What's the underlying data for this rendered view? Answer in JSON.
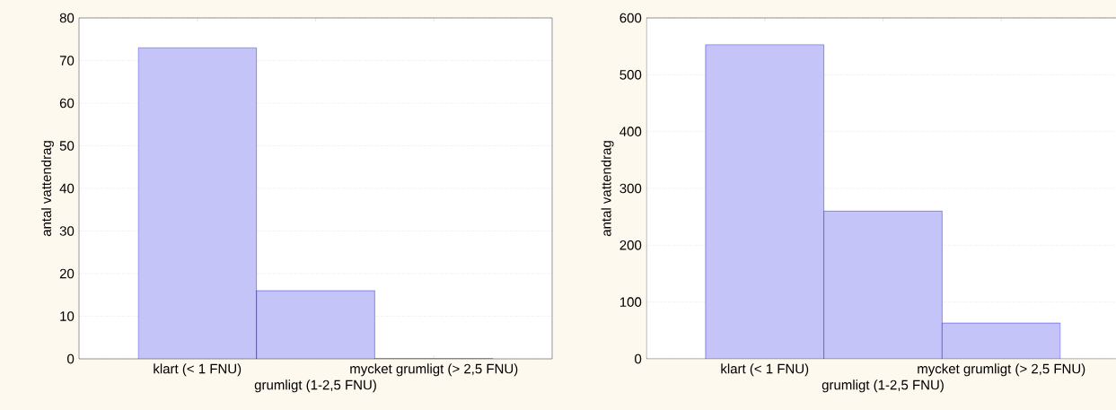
{
  "chart_data": [
    {
      "type": "bar",
      "categories": [
        "klart (< 1 FNU)",
        "grumligt (1-2,5 FNU)",
        "mycket grumligt (> 2,5 FNU)"
      ],
      "values": [
        73,
        16,
        0
      ],
      "color": "#c4c4f8",
      "ylabel": "antal vattendrag",
      "ylim": [
        0,
        80
      ],
      "yticks": [
        0,
        10,
        20,
        30,
        40,
        50,
        60,
        70,
        80
      ],
      "grid": "y"
    },
    {
      "type": "bar",
      "categories": [
        "klart (< 1 FNU)",
        "grumligt (1-2,5 FNU)",
        "mycket grumligt (> 2,5 FNU)"
      ],
      "values": [
        553,
        260,
        63
      ],
      "color": "#c4c4f8",
      "ylabel": "antal vattendrag",
      "ylim": [
        0,
        600
      ],
      "yticks": [
        0,
        100,
        200,
        300,
        400,
        500,
        600
      ],
      "grid": "y"
    }
  ]
}
